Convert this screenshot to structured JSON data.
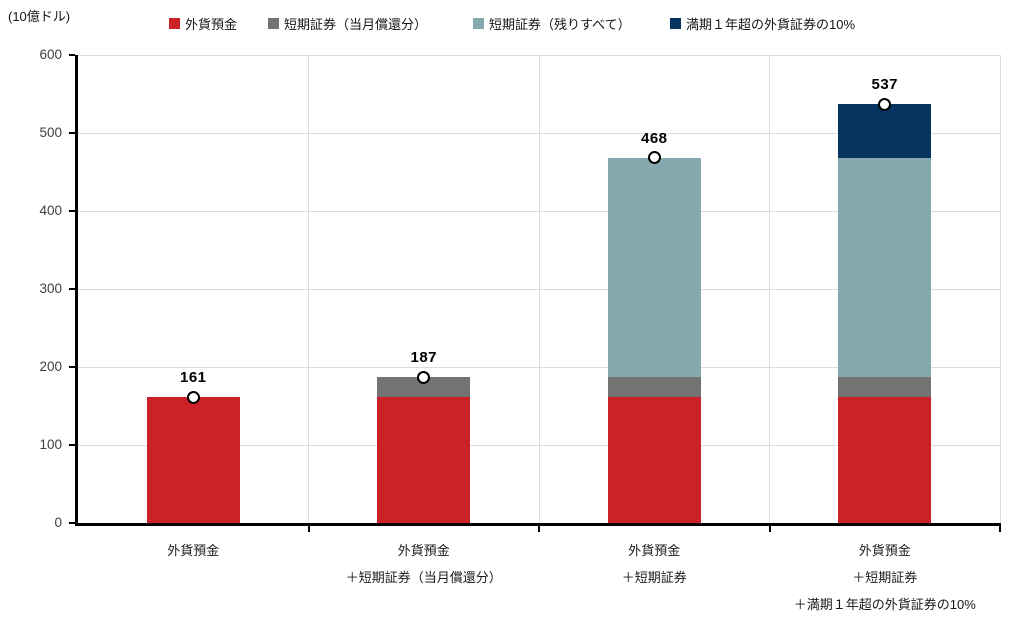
{
  "unit_label": "(10億ドル)",
  "legend": {
    "items": [
      {
        "label": "外貨預金",
        "color": "#cb2127"
      },
      {
        "label": "短期証券（当月償還分）",
        "color": "#737373"
      },
      {
        "label": "短期証券（残りすべて）",
        "color": "#85a9af"
      },
      {
        "label": "満期１年超の外貨証券の10%",
        "color": "#04345f"
      }
    ]
  },
  "chart_data": {
    "type": "bar",
    "stacked": true,
    "title": "",
    "ylabel": "(10億ドル)",
    "categories": [
      "外貨預金",
      "外貨預金\n＋短期証券（当月償還分）",
      "外貨預金\n＋短期証券",
      "外貨預金\n＋短期証券\n＋満期１年超の外貨証券の10%"
    ],
    "series": [
      {
        "name": "外貨預金",
        "color": "#cb2127",
        "values": [
          161,
          161,
          161,
          161
        ]
      },
      {
        "name": "短期証券（当月償還分）",
        "color": "#737373",
        "values": [
          0,
          26,
          26,
          26
        ]
      },
      {
        "name": "短期証券（残りすべて）",
        "color": "#85a9af",
        "values": [
          0,
          0,
          281,
          281
        ]
      },
      {
        "name": "満期１年超の外貨証券の10%",
        "color": "#04345f",
        "values": [
          0,
          0,
          0,
          69
        ]
      }
    ],
    "totals": [
      161,
      187,
      468,
      537
    ],
    "ylim": [
      0,
      600
    ],
    "yticks": [
      0,
      100,
      200,
      300,
      400,
      500,
      600
    ],
    "grid": true,
    "legend_position": "top",
    "marker": {
      "shape": "circle",
      "fill": "#ffffff",
      "stroke": "#000000"
    },
    "colors": {
      "axis": "#000000",
      "gridline": "#dcdcdc",
      "tick_label": "#3f3f3f",
      "value_label": "#000000"
    }
  }
}
